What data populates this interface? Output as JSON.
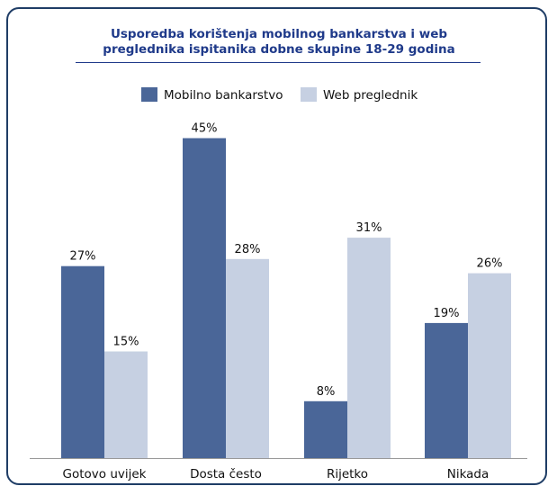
{
  "chart_data": {
    "type": "bar",
    "title_lines": [
      "Usporedba korištenja mobilnog bankarstva i web",
      "preglednika ispitanika dobne skupine 18-29 godina"
    ],
    "categories": [
      "Gotovo uvijek",
      "Dosta često",
      "Rijetko",
      "Nikada"
    ],
    "series": [
      {
        "name": "Mobilno bankarstvo",
        "values": [
          27,
          45,
          8,
          19
        ],
        "labels": [
          "27%",
          "45%",
          "8%",
          "19%"
        ],
        "color": "#4a6698"
      },
      {
        "name": "Web preglednik",
        "values": [
          15,
          28,
          31,
          26
        ],
        "labels": [
          "15%",
          "28%",
          "31%",
          "26%"
        ],
        "color": "#c6d0e2"
      }
    ],
    "ylim": [
      0,
      50
    ],
    "legend_position": "top",
    "grid": false,
    "axis_color": "#999999"
  }
}
